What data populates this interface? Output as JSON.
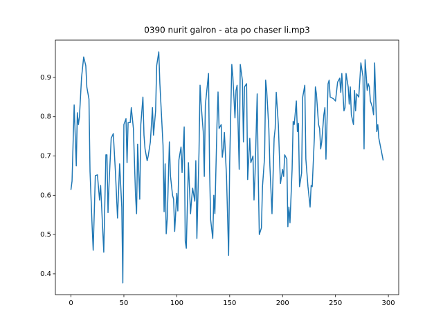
{
  "chart_data": {
    "type": "line",
    "title": "0390 nurit galron - ata po chaser li.mp3",
    "color": "#1f77b4",
    "x": [
      0,
      1,
      3,
      5,
      6,
      7,
      8,
      10,
      12,
      14,
      15,
      17,
      18,
      20,
      21,
      23,
      25,
      27,
      28,
      29,
      31,
      33,
      34,
      35,
      36,
      38,
      40,
      42,
      44,
      46,
      48,
      49,
      50,
      52,
      53,
      54,
      56,
      57,
      59,
      61,
      62,
      63,
      65,
      66,
      68,
      69,
      70,
      72,
      73,
      75,
      77,
      78,
      80,
      81,
      83,
      84,
      87,
      88,
      89,
      90,
      91,
      93,
      94,
      96,
      97,
      98,
      100,
      101,
      102,
      104,
      105,
      107,
      108,
      109,
      111,
      113,
      114,
      115,
      117,
      118,
      119,
      121,
      122,
      123,
      125,
      126,
      127,
      130,
      131,
      132,
      134,
      135,
      136,
      138,
      139,
      140,
      142,
      143,
      144,
      145,
      147,
      149,
      150,
      152,
      153,
      155,
      156,
      157,
      159,
      160,
      162,
      163,
      164,
      166,
      167,
      169,
      170,
      172,
      173,
      174,
      176,
      177,
      178,
      180,
      181,
      183,
      184,
      185,
      187,
      188,
      190,
      192,
      193,
      194,
      196,
      197,
      198,
      200,
      201,
      202,
      204,
      205,
      206,
      207,
      209,
      210,
      211,
      213,
      214,
      215,
      216,
      218,
      219,
      221,
      222,
      224,
      226,
      227,
      228,
      230,
      231,
      232,
      234,
      235,
      236,
      237,
      239,
      240,
      241,
      243,
      244,
      245,
      248,
      250,
      252,
      254,
      255,
      256,
      258,
      259,
      260,
      262,
      263,
      264,
      265,
      267,
      268,
      269,
      270,
      272,
      273,
      274,
      276,
      277,
      278,
      280,
      281,
      282,
      283,
      285,
      286,
      287,
      289,
      290,
      291,
      295
    ],
    "values": [
      0.615,
      0.636,
      0.83,
      0.675,
      0.81,
      0.78,
      0.8,
      0.9,
      0.952,
      0.93,
      0.875,
      0.845,
      0.66,
      0.52,
      0.46,
      0.65,
      0.652,
      0.588,
      0.625,
      0.57,
      0.455,
      0.703,
      0.703,
      0.556,
      0.63,
      0.745,
      0.757,
      0.66,
      0.542,
      0.68,
      0.57,
      0.377,
      0.78,
      0.795,
      0.683,
      0.785,
      0.785,
      0.823,
      0.77,
      0.6,
      0.553,
      0.73,
      0.59,
      0.78,
      0.85,
      0.753,
      0.718,
      0.688,
      0.7,
      0.735,
      0.823,
      0.753,
      0.815,
      0.93,
      0.965,
      0.885,
      0.727,
      0.558,
      0.68,
      0.502,
      0.54,
      0.736,
      0.65,
      0.6,
      0.59,
      0.508,
      0.605,
      0.56,
      0.69,
      0.723,
      0.658,
      0.774,
      0.483,
      0.465,
      0.683,
      0.553,
      0.59,
      0.618,
      0.585,
      0.688,
      0.49,
      0.71,
      0.88,
      0.832,
      0.762,
      0.648,
      0.83,
      0.91,
      0.666,
      0.538,
      0.49,
      0.6,
      0.553,
      0.78,
      0.863,
      0.77,
      0.78,
      0.697,
      0.718,
      0.76,
      0.648,
      0.447,
      0.683,
      0.933,
      0.902,
      0.797,
      0.867,
      0.88,
      0.666,
      0.933,
      0.893,
      0.736,
      0.876,
      0.884,
      0.64,
      0.745,
      0.683,
      0.7,
      0.588,
      0.657,
      0.858,
      0.65,
      0.5,
      0.517,
      0.622,
      0.697,
      0.893,
      0.866,
      0.77,
      0.675,
      0.553,
      0.745,
      0.77,
      0.862,
      0.78,
      0.7,
      0.63,
      0.666,
      0.648,
      0.703,
      0.692,
      0.52,
      0.57,
      0.53,
      0.666,
      0.788,
      0.78,
      0.84,
      0.762,
      0.783,
      0.622,
      0.657,
      0.85,
      0.88,
      0.692,
      0.622,
      0.57,
      0.625,
      0.622,
      0.745,
      0.876,
      0.858,
      0.78,
      0.77,
      0.718,
      0.736,
      0.805,
      0.823,
      0.692,
      0.884,
      0.893,
      0.85,
      0.846,
      0.84,
      0.888,
      0.898,
      0.862,
      0.91,
      0.815,
      0.823,
      0.91,
      0.876,
      0.832,
      0.876,
      0.805,
      0.78,
      0.867,
      0.815,
      0.858,
      0.85,
      0.893,
      0.937,
      0.902,
      0.718,
      0.945,
      0.867,
      0.884,
      0.876,
      0.84,
      0.823,
      0.805,
      0.937,
      0.762,
      0.78,
      0.745,
      0.69
    ],
    "xlim": [
      -14.75,
      309.75
    ],
    "xticks": [
      0,
      50,
      100,
      150,
      200,
      250,
      300
    ],
    "ylim": [
      0.347,
      0.995
    ],
    "yticks": [
      0.4,
      0.5,
      0.6,
      0.7,
      0.8,
      0.9
    ]
  }
}
